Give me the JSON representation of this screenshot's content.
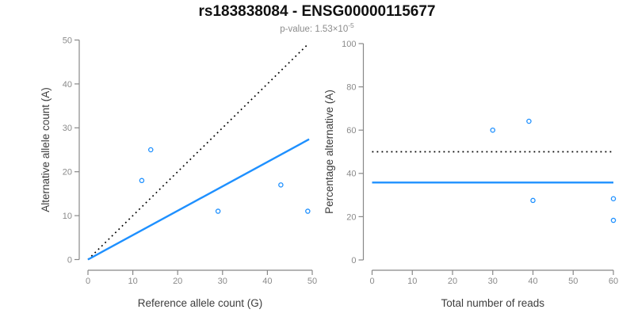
{
  "header": {
    "title": "rs183838084 - ENSG00000115677",
    "pvalue_prefix": "p-value: 1.53×10",
    "pvalue_exponent": "-5"
  },
  "colors": {
    "point_blue": "#1E90FF",
    "line_blue": "#1E90FF",
    "dotted_black": "#000000",
    "axis_gray": "#888888",
    "tick_label_gray": "#8a8a8a",
    "axis_title_gray": "#3d3d3d"
  },
  "chart_data": [
    {
      "type": "scatter",
      "title": "",
      "xlabel": "Reference allele count (G)",
      "ylabel": "Alternative allele count (A)",
      "xlim": [
        0,
        50
      ],
      "ylim": [
        0,
        50
      ],
      "xticks": [
        0,
        10,
        20,
        30,
        40,
        50
      ],
      "yticks": [
        0,
        10,
        20,
        30,
        40,
        50
      ],
      "grid": false,
      "point_color": "#1E90FF",
      "points": [
        {
          "x": 12,
          "y": 18
        },
        {
          "x": 14,
          "y": 25
        },
        {
          "x": 29,
          "y": 11
        },
        {
          "x": 43,
          "y": 17
        },
        {
          "x": 49,
          "y": 11
        }
      ],
      "lines": [
        {
          "name": "identity-line",
          "style": "dotted",
          "color": "#000000",
          "x1": 0,
          "y1": 0,
          "x2": 49,
          "y2": 49
        },
        {
          "name": "fit-line",
          "style": "solid",
          "color": "#1E90FF",
          "x1": 0,
          "y1": 0,
          "x2": 49.3,
          "y2": 27.4
        }
      ]
    },
    {
      "type": "scatter",
      "title": "",
      "xlabel": "Total number of reads",
      "ylabel": "Percentage alternative (A)",
      "xlim": [
        0,
        60
      ],
      "ylim": [
        0,
        100
      ],
      "xticks": [
        0,
        10,
        20,
        30,
        40,
        50,
        60
      ],
      "yticks": [
        0,
        20,
        40,
        60,
        80,
        100
      ],
      "grid": false,
      "point_color": "#1E90FF",
      "points": [
        {
          "x": 30,
          "y": 60
        },
        {
          "x": 39,
          "y": 64.1
        },
        {
          "x": 40,
          "y": 27.5
        },
        {
          "x": 60,
          "y": 28.3
        },
        {
          "x": 60,
          "y": 18.3
        }
      ],
      "lines": [
        {
          "name": "expected-50pct-line",
          "style": "dotted",
          "color": "#000000",
          "x1": 0,
          "y1": 50,
          "x2": 60,
          "y2": 50
        },
        {
          "name": "mean-percentage-line",
          "style": "solid",
          "color": "#1E90FF",
          "x1": 0,
          "y1": 35.8,
          "x2": 60,
          "y2": 35.8
        }
      ]
    }
  ]
}
